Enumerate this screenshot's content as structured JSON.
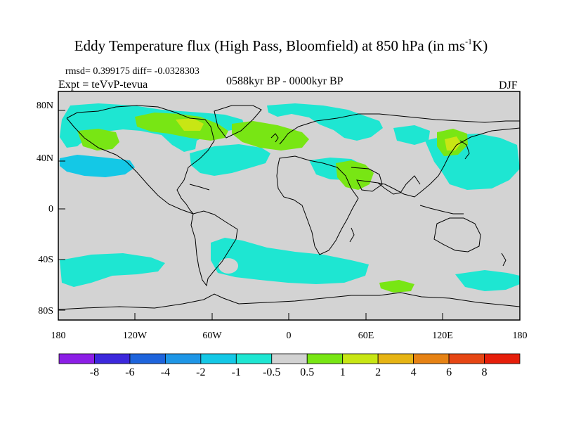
{
  "title": "Eddy Temperature flux (High Pass, Bloomfield) at 850 hPa (in ms",
  "title_sup": "-1",
  "title_end": "K)",
  "rmsd_line": "rmsd= 0.399175 diff= -0.0328303",
  "expt_line": "Expt = teVvP-tevua",
  "period": "0588kyr BP - 0000kyr BP",
  "season": "DJF",
  "lat_labels": [
    "80N",
    "40N",
    "0",
    "40S",
    "80S"
  ],
  "lon_labels": [
    "180",
    "120W",
    "60W",
    "0",
    "60E",
    "120E",
    "180"
  ],
  "colorbar": {
    "labels": [
      "-8",
      "-6",
      "-4",
      "-2",
      "-1",
      "-0.5",
      "0.5",
      "1",
      "2",
      "4",
      "6",
      "8"
    ],
    "colors": [
      "#8c1ee6",
      "#3c28dc",
      "#1e64dc",
      "#1e96e6",
      "#14c8e6",
      "#1ee6d2",
      "#d2d2d2",
      "#78e614",
      "#c8e614",
      "#e6b414",
      "#e68214",
      "#e64614",
      "#e61e0a"
    ]
  },
  "map": {
    "background": "#d3d3d3",
    "negative_fill": "#1ee6d2",
    "negative_strong_fill": "#14c8e6",
    "positive_fill": "#78e614",
    "positive_strong_fill": "#c8e614"
  }
}
